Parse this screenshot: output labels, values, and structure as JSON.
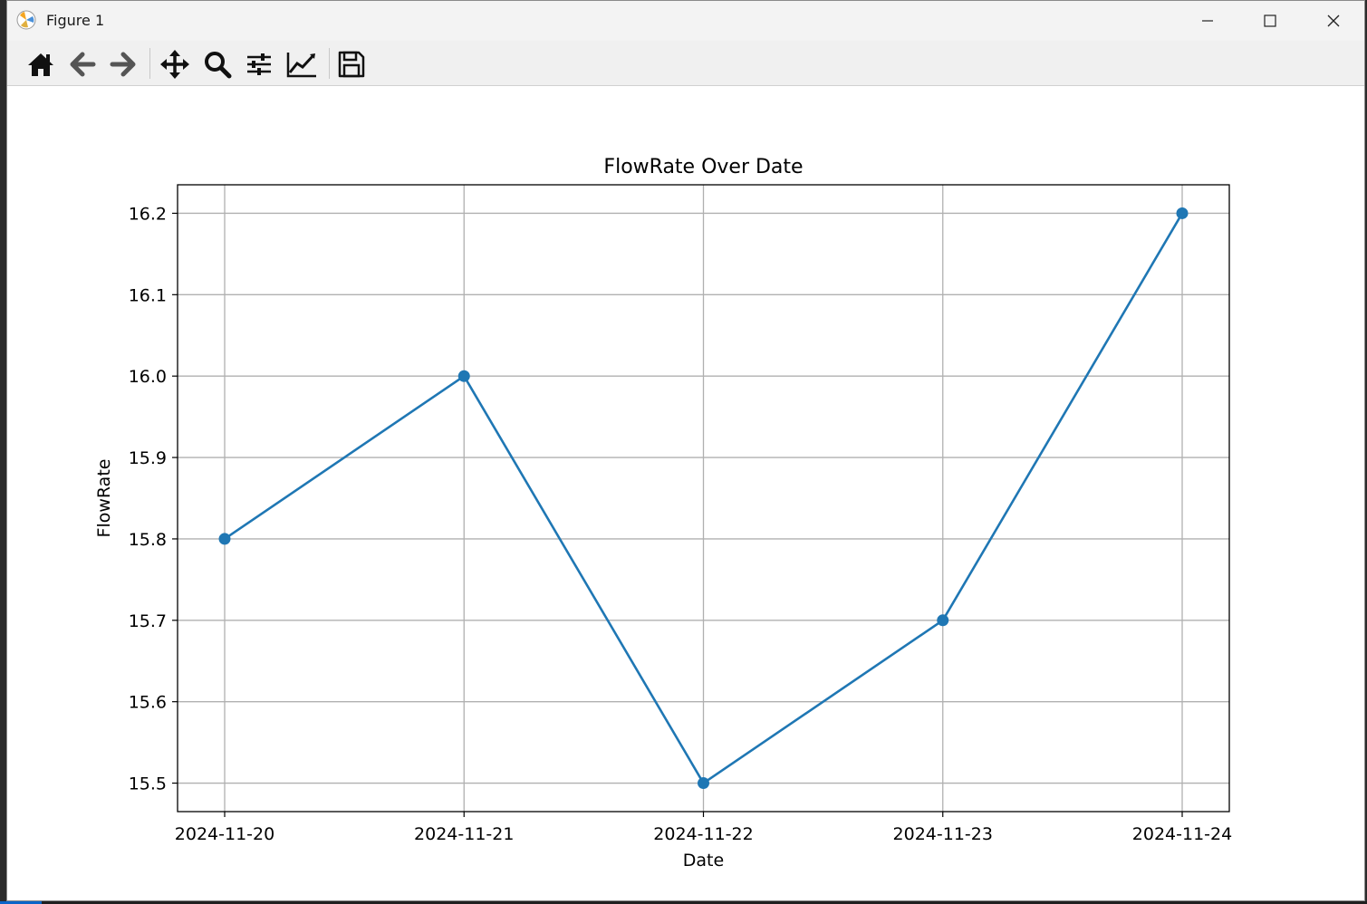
{
  "window": {
    "title": "Figure 1"
  },
  "toolbar": {
    "buttons": [
      {
        "name": "home-icon"
      },
      {
        "name": "back-arrow-icon"
      },
      {
        "name": "forward-arrow-icon"
      },
      {
        "name": "pan-icon"
      },
      {
        "name": "zoom-icon"
      },
      {
        "name": "configure-subplots-icon"
      },
      {
        "name": "edit-axis-icon"
      },
      {
        "name": "save-icon"
      }
    ]
  },
  "chart_data": {
    "type": "line",
    "title": "FlowRate Over Date",
    "xlabel": "Date",
    "ylabel": "FlowRate",
    "x": [
      "2024-11-20",
      "2024-11-21",
      "2024-11-22",
      "2024-11-23",
      "2024-11-24"
    ],
    "series": [
      {
        "values": [
          15.8,
          16.0,
          15.5,
          15.7,
          16.2
        ],
        "color": "#1f77b4",
        "marker": "circle"
      }
    ],
    "yticks": [
      "15.5",
      "15.6",
      "15.7",
      "15.8",
      "15.9",
      "16.0",
      "16.1",
      "16.2"
    ],
    "ylim": [
      15.465,
      16.235
    ],
    "grid": true
  }
}
